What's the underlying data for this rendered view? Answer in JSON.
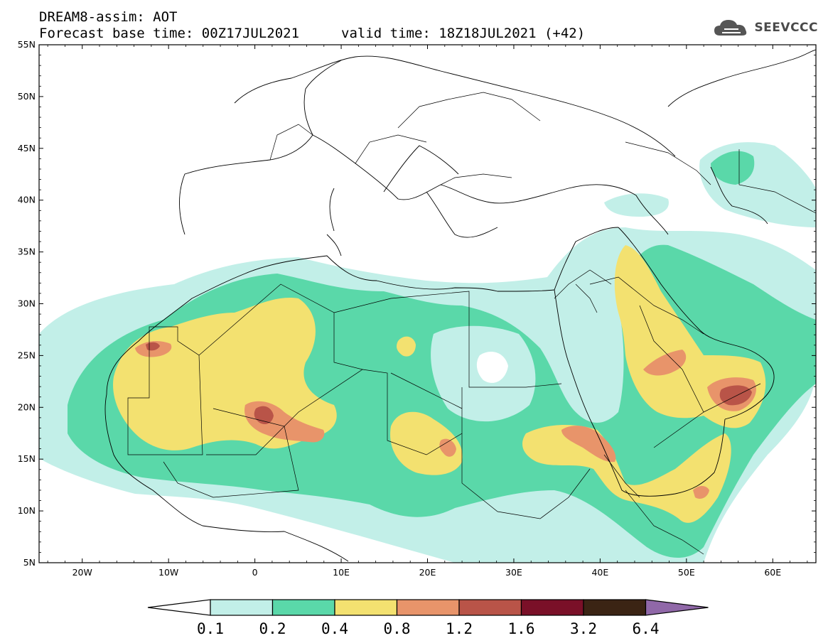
{
  "title": "DREAM8-assim: AOT",
  "forecast_base": "Forecast base time: 00Z17JUL2021",
  "valid": "valid time: 18Z18JUL2021 (+42)",
  "logo_text": "SEEVCCC",
  "lat_labels": [
    "55N",
    "50N",
    "45N",
    "40N",
    "35N",
    "30N",
    "25N",
    "20N",
    "15N",
    "10N",
    "5N"
  ],
  "lon_labels": [
    "20W",
    "10W",
    "0",
    "10E",
    "20E",
    "30E",
    "40E",
    "50E",
    "60E"
  ],
  "colorbar": {
    "labels": [
      "0.1",
      "0.2",
      "0.4",
      "0.8",
      "1.2",
      "1.6",
      "3.2",
      "6.4"
    ],
    "colors": [
      "#ffffff",
      "#c2efe8",
      "#5ad8a9",
      "#f3e170",
      "#e8946a",
      "#b95448",
      "#7a1028",
      "#3b2414",
      "#9068a8"
    ]
  }
}
